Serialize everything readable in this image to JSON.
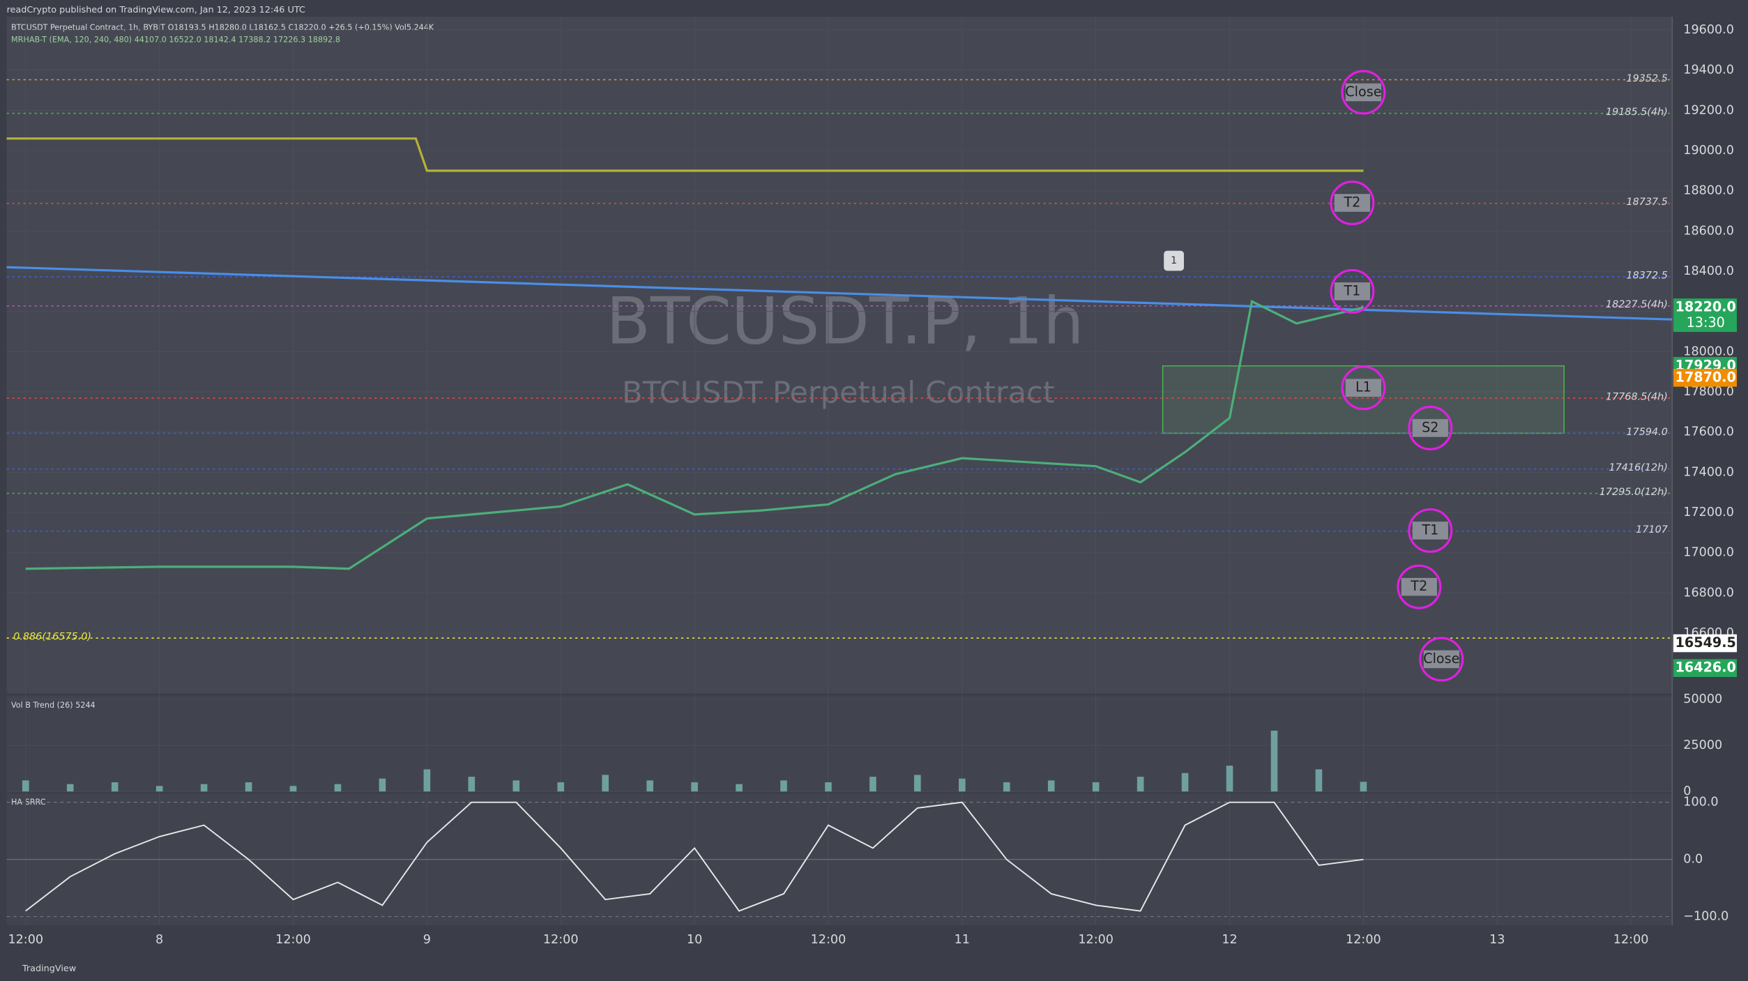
{
  "chart_data": [
    {
      "type": "line",
      "title": "BTCUSDT.P, 1h",
      "subtitle": "BTCUSDT Perpetual Contract",
      "published": "readCrypto published on TradingView.com, Jan 12, 2023 12:46 UTC",
      "legend_lines": [
        "BTCUSDT Perpetual Contract, 1h, BYBIT  O18193.5  H18280.0  L18162.5  C18220.0  +26.5 (+0.15%)  Vol5.244K",
        "MRHAB-T (EMA, 120, 240, 480)  44107.0  16522.0  18142.4  17388.2  17226.3  18892.8"
      ],
      "footer": "TradingView",
      "x": [
        0,
        12,
        24,
        29,
        36,
        42,
        48,
        54,
        60,
        66,
        72,
        78,
        84,
        90,
        96,
        100,
        104,
        108,
        110,
        114,
        120
      ],
      "values": [
        16920,
        16930,
        16930,
        16920,
        17170,
        17200,
        17230,
        17340,
        17190,
        17210,
        17240,
        17390,
        17470,
        17450,
        17430,
        17350,
        17500,
        17670,
        18250,
        18140,
        18220
      ],
      "color": "#4caf7a",
      "lines": [
        {
          "color": "#b5b23a",
          "x": [
            -1.7,
            35,
            36,
            120
          ],
          "values": [
            19060,
            19060,
            18900,
            18900
          ]
        },
        {
          "color": "#4a8ee8",
          "x": [
            -1.7,
            147.7
          ],
          "values": [
            18420,
            18160
          ]
        }
      ],
      "xlim": [
        -1.7,
        147.7
      ],
      "ylim": [
        16300,
        19666
      ],
      "xticks": [
        {
          "value": 0,
          "label": "12:00"
        },
        {
          "value": 12,
          "label": "8"
        },
        {
          "value": 24,
          "label": "12:00"
        },
        {
          "value": 36,
          "label": "9"
        },
        {
          "value": 48,
          "label": "12:00"
        },
        {
          "value": 60,
          "label": "10"
        },
        {
          "value": 72,
          "label": "12:00"
        },
        {
          "value": 84,
          "label": "11"
        },
        {
          "value": 96,
          "label": "12:00"
        },
        {
          "value": 108,
          "label": "12"
        },
        {
          "value": 120,
          "label": "12:00"
        },
        {
          "value": 132,
          "label": "13"
        },
        {
          "value": 144,
          "label": "12:00"
        }
      ],
      "yticks": [
        {
          "value": 16600,
          "label": "16600.0"
        },
        {
          "value": 16800,
          "label": "16800.0"
        },
        {
          "value": 17000,
          "label": "17000.0"
        },
        {
          "value": 17200,
          "label": "17200.0"
        },
        {
          "value": 17400,
          "label": "17400.0"
        },
        {
          "value": 17600,
          "label": "17600.0"
        },
        {
          "value": 17800,
          "label": "17800.0"
        },
        {
          "value": 18000,
          "label": "18000.0"
        },
        {
          "value": 18200,
          "label": "18200.0"
        },
        {
          "value": 18400,
          "label": "18400.0"
        },
        {
          "value": 18600,
          "label": "18600.0"
        },
        {
          "value": 18800,
          "label": "18800.0"
        },
        {
          "value": 19000,
          "label": "19000.0"
        },
        {
          "value": 19200,
          "label": "19200.0"
        },
        {
          "value": 19400,
          "label": "19400.0"
        },
        {
          "value": 19600,
          "label": "19600.0"
        }
      ],
      "levels": [
        {
          "value": 19352.5,
          "label": "19352.5",
          "color": "#e89a3a"
        },
        {
          "value": 19185.5,
          "label": "19185.5(4h)",
          "color": "#4caf50"
        },
        {
          "value": 18737.5,
          "label": "18737.5",
          "color": "#e04848"
        },
        {
          "value": 18372.5,
          "label": "18372.5",
          "color": "#3f5fe0"
        },
        {
          "value": 18227.5,
          "label": "18227.5(4h)",
          "color": "#d04ad0"
        },
        {
          "value": 17768.5,
          "label": "17768.5(4h)",
          "color": "#e04848"
        },
        {
          "value": 17594,
          "label": "17594.0",
          "color": "#3f5fe0"
        },
        {
          "value": 17416,
          "label": "17416(12h)",
          "color": "#3f5fe0"
        },
        {
          "value": 17295,
          "label": "17295.0(12h)",
          "color": "#4caf50"
        },
        {
          "value": 17107,
          "label": "17107",
          "color": "#3f5fe0"
        },
        {
          "value": 16575,
          "label": "0.886(16575.0)",
          "color": "#e8e83a"
        }
      ],
      "badges": [
        {
          "value": 18220,
          "label": "18220.0",
          "countdown": "13:30",
          "color": "#26a65b"
        },
        {
          "value": 17929,
          "label": "17929.0",
          "color": "#26a65b"
        },
        {
          "value": 17870,
          "label": "17870.0",
          "color": "#f08c00"
        },
        {
          "value": 16549.5,
          "label": "16549.5",
          "color": "#ffffff"
        },
        {
          "value": 16426,
          "label": "16426.0",
          "color": "#26a65b"
        }
      ],
      "zone": {
        "x": [
          102,
          138
        ],
        "y": [
          17594,
          17929
        ]
      },
      "markers": [
        {
          "label": "Close",
          "x": 120,
          "y": 19290
        },
        {
          "label": "T2",
          "x": 119,
          "y": 18740
        },
        {
          "label": "T1",
          "x": 119,
          "y": 18300
        },
        {
          "label": "L1",
          "x": 120,
          "y": 17820
        },
        {
          "label": "S2",
          "x": 126,
          "y": 17620
        },
        {
          "label": "T1",
          "x": 126,
          "y": 17110
        },
        {
          "label": "T2",
          "x": 125,
          "y": 16830
        },
        {
          "label": "Close",
          "x": 127,
          "y": 16470
        }
      ],
      "flag": {
        "label": "1",
        "x": 103,
        "y": 18380
      }
    },
    {
      "type": "bar",
      "title": "Vol B Trend (26)  5244",
      "color": "#6fa0a0",
      "x": [
        0,
        4,
        8,
        12,
        16,
        20,
        24,
        28,
        32,
        36,
        40,
        44,
        48,
        52,
        56,
        60,
        64,
        68,
        72,
        76,
        80,
        84,
        88,
        92,
        96,
        100,
        104,
        108,
        112,
        116,
        120
      ],
      "values": [
        6000,
        4000,
        5000,
        3000,
        4000,
        5000,
        3000,
        4000,
        7000,
        12000,
        8000,
        6000,
        5000,
        9000,
        6000,
        5000,
        4000,
        6000,
        5000,
        8000,
        9000,
        7000,
        5000,
        6000,
        5000,
        8000,
        10000,
        14000,
        33000,
        12000,
        5244
      ],
      "ylim": [
        0,
        52000
      ],
      "yticks": [
        0,
        25000,
        50000
      ]
    },
    {
      "type": "line",
      "title": "HA SRRC",
      "color": "#e8e8e8",
      "x": [
        0,
        4,
        8,
        12,
        16,
        20,
        24,
        28,
        32,
        36,
        40,
        44,
        48,
        52,
        56,
        60,
        64,
        68,
        72,
        76,
        80,
        84,
        88,
        92,
        96,
        100,
        104,
        108,
        112,
        116,
        120
      ],
      "values": [
        -90,
        -30,
        10,
        40,
        60,
        0,
        -70,
        -40,
        -80,
        30,
        100,
        100,
        20,
        -70,
        -60,
        20,
        -90,
        -60,
        60,
        20,
        90,
        100,
        0,
        -60,
        -80,
        -90,
        60,
        100,
        100,
        -10,
        0
      ],
      "ylim": [
        -115,
        115
      ],
      "yticks": [
        {
          "value": 100,
          "label": "100.0"
        },
        {
          "value": 0,
          "label": "0.0"
        },
        {
          "value": -100,
          "label": "−100.0"
        }
      ]
    }
  ]
}
